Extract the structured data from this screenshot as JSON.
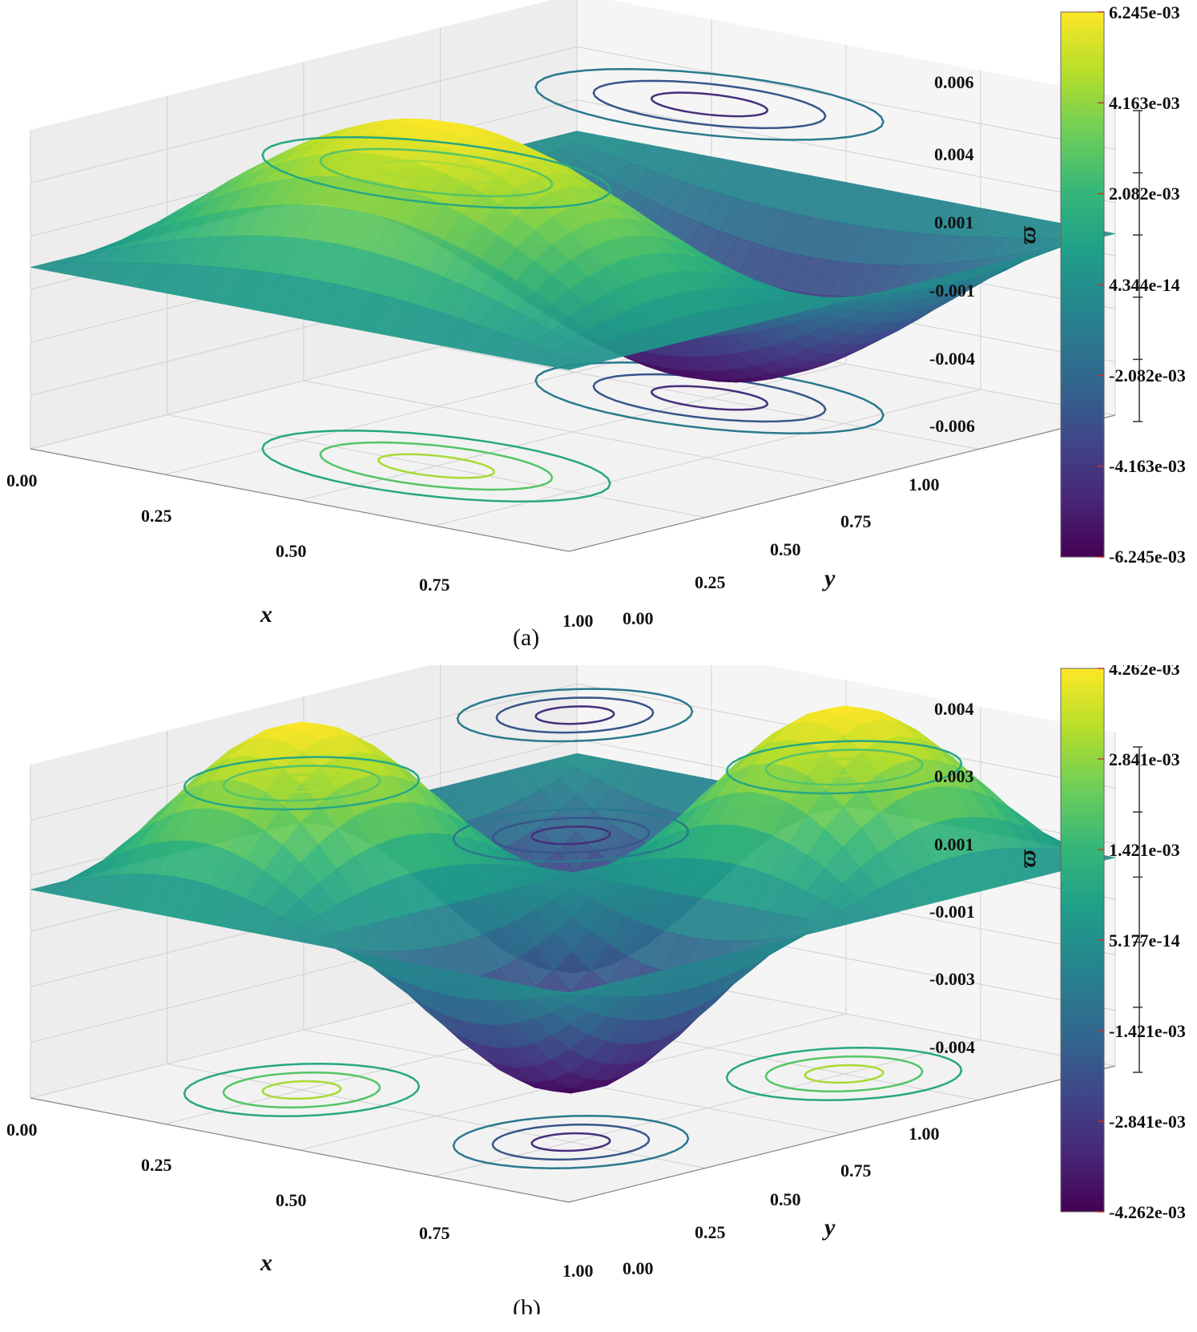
{
  "colors": {
    "viridis": [
      "#440154",
      "#482878",
      "#3e4989",
      "#31688e",
      "#26828e",
      "#1f9e89",
      "#35b779",
      "#6ece58",
      "#b5de2b",
      "#fde725"
    ],
    "pane": "#f2f2f2",
    "grid": "#d0d0d0"
  },
  "chart_data": [
    {
      "type": "surface3d",
      "caption": "(a)",
      "xlabel": "x",
      "ylabel": "y",
      "zlabel": "ϖ",
      "xticks": [
        "0.00",
        "0.25",
        "0.50",
        "0.75",
        "1.00"
      ],
      "yticks": [
        "0.00",
        "0.25",
        "0.50",
        "0.75",
        "1.00"
      ],
      "zticks": [
        "-0.006",
        "-0.004",
        "-0.001",
        "0.001",
        "0.004",
        "0.006"
      ],
      "zlim": [
        -0.006245,
        0.006245
      ],
      "colorbar_ticks": [
        "6.245e-03",
        "4.163e-03",
        "2.082e-03",
        "4.344e-14",
        "-2.082e-03",
        "-4.163e-03",
        "-6.245e-03"
      ],
      "mode": "a"
    },
    {
      "type": "surface3d",
      "caption": "(b)",
      "xlabel": "x",
      "ylabel": "y",
      "zlabel": "ϖ",
      "xticks": [
        "0.00",
        "0.25",
        "0.50",
        "0.75",
        "1.00"
      ],
      "yticks": [
        "0.00",
        "0.25",
        "0.50",
        "0.75",
        "1.00"
      ],
      "zticks": [
        "-0.004",
        "-0.003",
        "-0.001",
        "0.001",
        "0.003",
        "0.004"
      ],
      "zlim": [
        -0.004262,
        0.004262
      ],
      "colorbar_ticks": [
        "4.262e-03",
        "2.841e-03",
        "1.421e-03",
        "5.177e-14",
        "-1.421e-03",
        "-2.841e-03",
        "-4.262e-03"
      ],
      "mode": "b"
    }
  ]
}
